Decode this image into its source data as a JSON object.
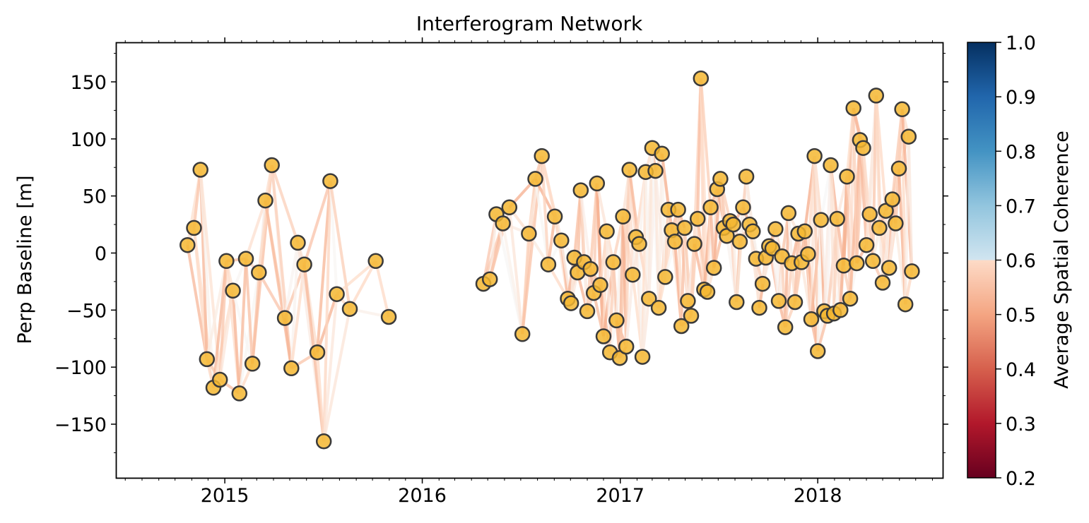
{
  "chart_data": {
    "type": "scatter",
    "title": "Interferogram Network",
    "xlabel": "",
    "ylabel": "Perp Baseline [m]",
    "xlim": [
      "2014-06-15",
      "2018-08-20"
    ],
    "ylim": [
      -197,
      184
    ],
    "x_ticks": [
      "2015",
      "2016",
      "2017",
      "2018"
    ],
    "y_ticks": [
      150,
      100,
      50,
      0,
      -50,
      -100,
      -150
    ],
    "y_tick_labels": [
      "150",
      "100",
      "50",
      "0",
      "−50",
      "−100",
      "−150"
    ],
    "grid": false,
    "colorbar": {
      "label": "Average Spatial Coherence",
      "range": [
        0.2,
        1.0
      ],
      "ticks": [
        1.0,
        0.9,
        0.8,
        0.7,
        0.6,
        0.5,
        0.4,
        0.3,
        0.2
      ],
      "tick_labels": [
        "1.0",
        "0.9",
        "0.8",
        "0.7",
        "0.6",
        "0.5",
        "0.4",
        "0.3",
        "0.2"
      ],
      "colormap": "RdBu",
      "clipped_above": 0.7
    },
    "point_style": {
      "fill": "#f5b731",
      "edge": "#3a3a3a"
    },
    "edge_coherence_range": [
      0.45,
      0.6
    ],
    "acquisitions": [
      {
        "date": "2014-10-24",
        "bperp": 7
      },
      {
        "date": "2014-11-05",
        "bperp": 22
      },
      {
        "date": "2014-11-17",
        "bperp": 73
      },
      {
        "date": "2014-11-29",
        "bperp": -93
      },
      {
        "date": "2014-12-11",
        "bperp": -118
      },
      {
        "date": "2014-12-23",
        "bperp": -111
      },
      {
        "date": "2015-01-04",
        "bperp": -7
      },
      {
        "date": "2015-01-16",
        "bperp": -33
      },
      {
        "date": "2015-01-28",
        "bperp": -123
      },
      {
        "date": "2015-02-09",
        "bperp": -5
      },
      {
        "date": "2015-02-21",
        "bperp": -97
      },
      {
        "date": "2015-03-05",
        "bperp": -17
      },
      {
        "date": "2015-03-17",
        "bperp": 46
      },
      {
        "date": "2015-03-29",
        "bperp": 77
      },
      {
        "date": "2015-04-22",
        "bperp": -57
      },
      {
        "date": "2015-05-04",
        "bperp": -101
      },
      {
        "date": "2015-05-16",
        "bperp": 9
      },
      {
        "date": "2015-05-28",
        "bperp": -10
      },
      {
        "date": "2015-06-21",
        "bperp": -87
      },
      {
        "date": "2015-07-03",
        "bperp": -165
      },
      {
        "date": "2015-07-15",
        "bperp": 63
      },
      {
        "date": "2015-07-27",
        "bperp": -36
      },
      {
        "date": "2015-08-20",
        "bperp": -49
      },
      {
        "date": "2015-10-07",
        "bperp": -7
      },
      {
        "date": "2015-10-31",
        "bperp": -56
      },
      {
        "date": "2016-04-23",
        "bperp": -27
      },
      {
        "date": "2016-05-05",
        "bperp": -23
      },
      {
        "date": "2016-05-17",
        "bperp": 34
      },
      {
        "date": "2016-05-29",
        "bperp": 26
      },
      {
        "date": "2016-06-10",
        "bperp": 40
      },
      {
        "date": "2016-07-04",
        "bperp": -71
      },
      {
        "date": "2016-07-16",
        "bperp": 17
      },
      {
        "date": "2016-07-28",
        "bperp": 65
      },
      {
        "date": "2016-08-09",
        "bperp": 85
      },
      {
        "date": "2016-08-21",
        "bperp": -10
      },
      {
        "date": "2016-09-02",
        "bperp": 32
      },
      {
        "date": "2016-09-14",
        "bperp": 11
      },
      {
        "date": "2016-09-26",
        "bperp": -40
      },
      {
        "date": "2016-10-02",
        "bperp": -44
      },
      {
        "date": "2016-10-08",
        "bperp": -4
      },
      {
        "date": "2016-10-14",
        "bperp": -17
      },
      {
        "date": "2016-10-20",
        "bperp": 55
      },
      {
        "date": "2016-10-26",
        "bperp": -8
      },
      {
        "date": "2016-11-01",
        "bperp": -51
      },
      {
        "date": "2016-11-07",
        "bperp": -14
      },
      {
        "date": "2016-11-13",
        "bperp": -35
      },
      {
        "date": "2016-11-19",
        "bperp": 61
      },
      {
        "date": "2016-11-25",
        "bperp": -28
      },
      {
        "date": "2016-12-01",
        "bperp": -73
      },
      {
        "date": "2016-12-07",
        "bperp": 19
      },
      {
        "date": "2016-12-13",
        "bperp": -87
      },
      {
        "date": "2016-12-19",
        "bperp": -8
      },
      {
        "date": "2016-12-25",
        "bperp": -59
      },
      {
        "date": "2016-12-31",
        "bperp": -92
      },
      {
        "date": "2017-01-06",
        "bperp": 32
      },
      {
        "date": "2017-01-12",
        "bperp": -82
      },
      {
        "date": "2017-01-18",
        "bperp": 73
      },
      {
        "date": "2017-01-24",
        "bperp": -19
      },
      {
        "date": "2017-01-30",
        "bperp": 14
      },
      {
        "date": "2017-02-05",
        "bperp": 8
      },
      {
        "date": "2017-02-11",
        "bperp": -91
      },
      {
        "date": "2017-02-17",
        "bperp": 71
      },
      {
        "date": "2017-02-23",
        "bperp": -40
      },
      {
        "date": "2017-03-01",
        "bperp": 92
      },
      {
        "date": "2017-03-07",
        "bperp": 72
      },
      {
        "date": "2017-03-13",
        "bperp": -48
      },
      {
        "date": "2017-03-19",
        "bperp": 87
      },
      {
        "date": "2017-03-25",
        "bperp": -21
      },
      {
        "date": "2017-03-31",
        "bperp": 38
      },
      {
        "date": "2017-04-06",
        "bperp": 20
      },
      {
        "date": "2017-04-12",
        "bperp": 10
      },
      {
        "date": "2017-04-18",
        "bperp": 38
      },
      {
        "date": "2017-04-24",
        "bperp": -64
      },
      {
        "date": "2017-04-30",
        "bperp": 22
      },
      {
        "date": "2017-05-06",
        "bperp": -42
      },
      {
        "date": "2017-05-12",
        "bperp": -55
      },
      {
        "date": "2017-05-18",
        "bperp": 8
      },
      {
        "date": "2017-05-24",
        "bperp": 30
      },
      {
        "date": "2017-05-30",
        "bperp": 153
      },
      {
        "date": "2017-06-05",
        "bperp": -32
      },
      {
        "date": "2017-06-11",
        "bperp": -34
      },
      {
        "date": "2017-06-17",
        "bperp": 40
      },
      {
        "date": "2017-06-23",
        "bperp": -13
      },
      {
        "date": "2017-06-29",
        "bperp": 56
      },
      {
        "date": "2017-07-05",
        "bperp": 65
      },
      {
        "date": "2017-07-11",
        "bperp": 22
      },
      {
        "date": "2017-07-17",
        "bperp": 15
      },
      {
        "date": "2017-07-23",
        "bperp": 28
      },
      {
        "date": "2017-07-29",
        "bperp": 25
      },
      {
        "date": "2017-08-04",
        "bperp": -43
      },
      {
        "date": "2017-08-10",
        "bperp": 10
      },
      {
        "date": "2017-08-16",
        "bperp": 40
      },
      {
        "date": "2017-08-22",
        "bperp": 67
      },
      {
        "date": "2017-08-28",
        "bperp": 25
      },
      {
        "date": "2017-09-03",
        "bperp": 19
      },
      {
        "date": "2017-09-09",
        "bperp": -5
      },
      {
        "date": "2017-09-15",
        "bperp": -48
      },
      {
        "date": "2017-09-21",
        "bperp": -27
      },
      {
        "date": "2017-09-27",
        "bperp": -4
      },
      {
        "date": "2017-10-03",
        "bperp": 6
      },
      {
        "date": "2017-10-09",
        "bperp": 4
      },
      {
        "date": "2017-10-15",
        "bperp": 21
      },
      {
        "date": "2017-10-21",
        "bperp": -42
      },
      {
        "date": "2017-10-27",
        "bperp": -3
      },
      {
        "date": "2017-11-02",
        "bperp": -65
      },
      {
        "date": "2017-11-08",
        "bperp": 35
      },
      {
        "date": "2017-11-14",
        "bperp": -9
      },
      {
        "date": "2017-11-20",
        "bperp": -43
      },
      {
        "date": "2017-11-26",
        "bperp": 17
      },
      {
        "date": "2017-12-02",
        "bperp": -8
      },
      {
        "date": "2017-12-08",
        "bperp": 19
      },
      {
        "date": "2017-12-14",
        "bperp": -1
      },
      {
        "date": "2017-12-20",
        "bperp": -58
      },
      {
        "date": "2017-12-26",
        "bperp": 85
      },
      {
        "date": "2018-01-01",
        "bperp": -86
      },
      {
        "date": "2018-01-07",
        "bperp": 29
      },
      {
        "date": "2018-01-13",
        "bperp": -51
      },
      {
        "date": "2018-01-19",
        "bperp": -55
      },
      {
        "date": "2018-01-25",
        "bperp": 77
      },
      {
        "date": "2018-01-31",
        "bperp": -53
      },
      {
        "date": "2018-02-06",
        "bperp": 30
      },
      {
        "date": "2018-02-12",
        "bperp": -50
      },
      {
        "date": "2018-02-18",
        "bperp": -11
      },
      {
        "date": "2018-02-24",
        "bperp": 67
      },
      {
        "date": "2018-03-02",
        "bperp": -40
      },
      {
        "date": "2018-03-08",
        "bperp": 127
      },
      {
        "date": "2018-03-14",
        "bperp": -9
      },
      {
        "date": "2018-03-20",
        "bperp": 99
      },
      {
        "date": "2018-03-26",
        "bperp": 92
      },
      {
        "date": "2018-04-01",
        "bperp": 7
      },
      {
        "date": "2018-04-07",
        "bperp": 34
      },
      {
        "date": "2018-04-13",
        "bperp": -7
      },
      {
        "date": "2018-04-19",
        "bperp": 138
      },
      {
        "date": "2018-04-25",
        "bperp": 22
      },
      {
        "date": "2018-05-01",
        "bperp": -26
      },
      {
        "date": "2018-05-07",
        "bperp": 37
      },
      {
        "date": "2018-05-13",
        "bperp": -13
      },
      {
        "date": "2018-05-19",
        "bperp": 47
      },
      {
        "date": "2018-05-25",
        "bperp": 26
      },
      {
        "date": "2018-05-31",
        "bperp": 74
      },
      {
        "date": "2018-06-06",
        "bperp": 126
      },
      {
        "date": "2018-06-12",
        "bperp": -45
      },
      {
        "date": "2018-06-18",
        "bperp": 102
      },
      {
        "date": "2018-06-24",
        "bperp": -16
      }
    ]
  }
}
